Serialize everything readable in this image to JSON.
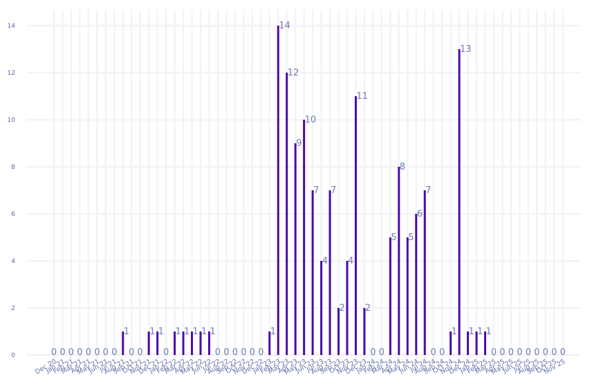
{
  "chart_data": {
    "type": "bar",
    "title": "",
    "xlabel": "",
    "ylabel": "",
    "ylim": [
      0,
      15
    ],
    "yticks": [
      0,
      2,
      4,
      6,
      8,
      10,
      12,
      14
    ],
    "grid": true,
    "legend": "none",
    "bar_color": "#4a0aa8",
    "categories": [
      "Dec 20",
      "Jan 21",
      "Feb 21",
      "Mar 21",
      "Apr 21",
      "May 21",
      "Jun 21",
      "Jul 21",
      "Aug 21",
      "Sep 21",
      "Oct 21",
      "Nov 21",
      "Dec 21",
      "Jan 22",
      "Feb 22",
      "Mar 22",
      "Apr 22",
      "May 22",
      "Jun 22",
      "Jul 22",
      "Aug 22",
      "Sep 22",
      "Oct 22",
      "Nov 22",
      "Dec 22",
      "Jan 23",
      "Feb 23",
      "Mar 23",
      "Apr 23",
      "May 23",
      "Jun 23",
      "Jul 23",
      "Aug 23",
      "Sep 23",
      "Oct 23",
      "Nov 23",
      "Dec 23",
      "Jan 24",
      "Feb 24",
      "Mar 24",
      "Apr 24",
      "May 24",
      "Jun 24",
      "Jul 24",
      "Aug 24",
      "Sep 24",
      "Oct 24",
      "Nov 24",
      "Dec 24",
      "Jan 25",
      "Feb 25",
      "Mar 25",
      "Apr 25",
      "May 25",
      "Jun 25",
      "Jul 25",
      "Aug 25",
      "Sep 25",
      "Oct 25",
      "Nov 25"
    ],
    "values": [
      0,
      0,
      0,
      0,
      0,
      0,
      0,
      0,
      1,
      0,
      0,
      1,
      1,
      0,
      1,
      1,
      1,
      1,
      1,
      0,
      0,
      0,
      0,
      0,
      0,
      1,
      14,
      12,
      9,
      10,
      7,
      4,
      7,
      2,
      4,
      11,
      2,
      0,
      0,
      5,
      8,
      5,
      6,
      7,
      0,
      0,
      1,
      13,
      1,
      1,
      1,
      0,
      0,
      0,
      0,
      0,
      0,
      0,
      0,
      0
    ]
  }
}
